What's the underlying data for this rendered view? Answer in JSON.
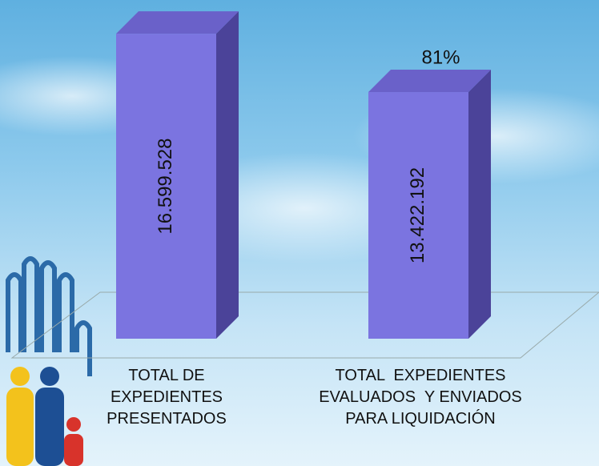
{
  "chart_data": {
    "type": "bar3d",
    "categories": [
      "TOTAL DE EXPEDIENTES PRESENTADOS",
      "TOTAL  EXPEDIENTES EVALUADOS  Y ENVIADOS PARA LIQUIDACIÓN"
    ],
    "values": [
      16599528,
      13422192
    ],
    "value_labels": [
      "16.599.528",
      "13.422.192"
    ],
    "annotation": "81%",
    "color": "#7b74e0",
    "ylim": [
      0,
      18000000
    ]
  }
}
